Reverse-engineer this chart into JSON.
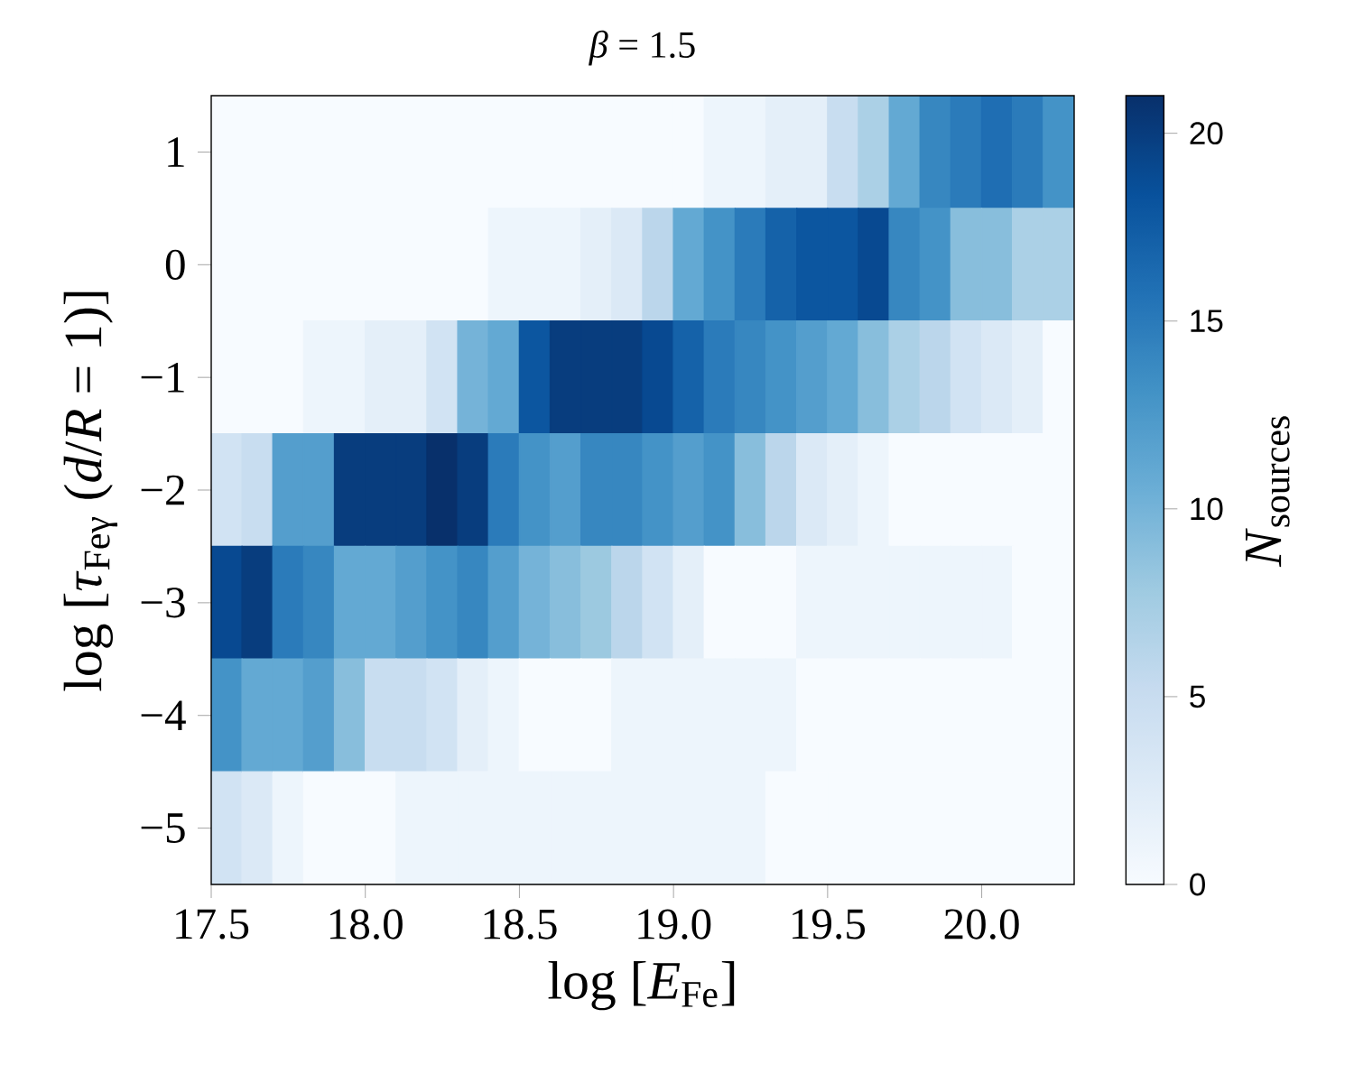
{
  "chart_data": {
    "type": "heatmap",
    "title": "*β* = 1.5",
    "xlabel": "log [*E*$_{Fe}$]",
    "ylabel": "log [*τ*$_{Feγ}$ (*d*/*R* = 1)]",
    "clabel": "*N*$_{sources}$",
    "x": [
      17.55,
      17.65,
      17.75,
      17.85,
      17.95,
      18.05,
      18.15,
      18.25,
      18.35,
      18.45,
      18.55,
      18.65,
      18.75,
      18.85,
      18.95,
      19.05,
      19.15,
      19.25,
      19.35,
      19.45,
      19.55,
      19.65,
      19.75,
      19.85,
      19.95,
      20.05,
      20.15,
      20.25
    ],
    "xlim": [
      17.5,
      20.3
    ],
    "xticks": [
      17.5,
      {
        "value": 18,
        "label": "18.0"
      },
      18.5,
      {
        "value": 19,
        "label": "19.0"
      },
      19.5,
      {
        "value": 20,
        "label": "20.0"
      }
    ],
    "y_categories": [
      "1",
      "0",
      "−1",
      "−2",
      "−3",
      "−4",
      "−5"
    ],
    "cells": [
      [
        0,
        0,
        0,
        0,
        0,
        0,
        0,
        0,
        0,
        0,
        0,
        0,
        0,
        0,
        0,
        0,
        1,
        1,
        2,
        2,
        5,
        7,
        11,
        14,
        15,
        16,
        15,
        13
      ],
      [
        0,
        0,
        0,
        0,
        0,
        0,
        0,
        0,
        0,
        1,
        1,
        1,
        2,
        3,
        6,
        11,
        13,
        15,
        17,
        18,
        18,
        19,
        14,
        13,
        9,
        9,
        7,
        7
      ],
      [
        0,
        0,
        0,
        1,
        1,
        2,
        2,
        4,
        10,
        11,
        18,
        20,
        20,
        20,
        19,
        17,
        15,
        14,
        13,
        12,
        11,
        9,
        7,
        6,
        4,
        3,
        2,
        0
      ],
      [
        4,
        5,
        12,
        12,
        20,
        20,
        20,
        21,
        20,
        15,
        13,
        12,
        14,
        14,
        13,
        12,
        13,
        9,
        6,
        3,
        2,
        1,
        0,
        0,
        0,
        0,
        0,
        0
      ],
      [
        19,
        20,
        15,
        14,
        11,
        11,
        12,
        13,
        14,
        12,
        10,
        9,
        8,
        6,
        4,
        2,
        0,
        0,
        0,
        1,
        1,
        1,
        1,
        1,
        1,
        1,
        0,
        0
      ],
      [
        13,
        11,
        11,
        12,
        9,
        5,
        5,
        4,
        2,
        1,
        0,
        0,
        0,
        1,
        1,
        1,
        1,
        1,
        1,
        0,
        0,
        0,
        0,
        0,
        0,
        0,
        0,
        0
      ],
      [
        4,
        3,
        1,
        0,
        0,
        0,
        1,
        1,
        1,
        1,
        1,
        1,
        1,
        1,
        1,
        1,
        1,
        1,
        0,
        0,
        0,
        0,
        0,
        0,
        0,
        0,
        0,
        0
      ]
    ],
    "clim": [
      0,
      21
    ],
    "cticks": [
      0,
      5,
      10,
      15,
      20
    ]
  }
}
